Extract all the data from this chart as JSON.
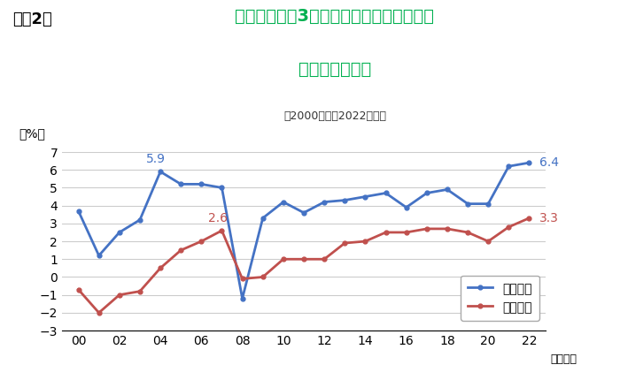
{
  "title_fig": "（図2）",
  "title_main_line1": "全産業：今後3年間の設備投資・雇用者数",
  "title_main_line2": "の増減率見通し",
  "subtitle": "（2000年度～2022年度）",
  "ylabel": "（%）",
  "xlabel_suffix": "（年度）",
  "years": [
    2000,
    2001,
    2002,
    2003,
    2004,
    2005,
    2006,
    2007,
    2008,
    2009,
    2010,
    2011,
    2012,
    2013,
    2014,
    2015,
    2016,
    2017,
    2018,
    2019,
    2020,
    2021,
    2022
  ],
  "capex": [
    3.7,
    1.2,
    2.5,
    3.2,
    5.9,
    5.2,
    5.2,
    5.0,
    -1.2,
    3.3,
    4.2,
    3.6,
    4.2,
    4.3,
    4.5,
    4.7,
    3.9,
    4.7,
    4.9,
    4.1,
    4.1,
    6.2,
    6.4
  ],
  "employment": [
    -0.7,
    -2.0,
    -1.0,
    -0.8,
    0.5,
    1.5,
    2.0,
    2.6,
    -0.1,
    0.0,
    1.0,
    1.0,
    1.0,
    1.9,
    2.0,
    2.5,
    2.5,
    2.7,
    2.7,
    2.5,
    2.0,
    2.8,
    3.3
  ],
  "capex_color": "#4472C4",
  "employment_color": "#C0504D",
  "title_color": "#00B050",
  "fig_label_color": "#000000",
  "ylim": [
    -3,
    7
  ],
  "yticks": [
    -3,
    -2,
    -1,
    0,
    1,
    2,
    3,
    4,
    5,
    6,
    7
  ],
  "xtick_labels": [
    "00",
    "02",
    "04",
    "06",
    "08",
    "10",
    "12",
    "14",
    "16",
    "18",
    "20",
    "22"
  ],
  "xtick_positions": [
    2000,
    2002,
    2004,
    2006,
    2008,
    2010,
    2012,
    2014,
    2016,
    2018,
    2020,
    2022
  ],
  "legend_capex": "設備投資",
  "legend_employment": "雇用者数",
  "bg_color": "#FFFFFF",
  "grid_color": "#CCCCCC",
  "line_width": 2.0
}
